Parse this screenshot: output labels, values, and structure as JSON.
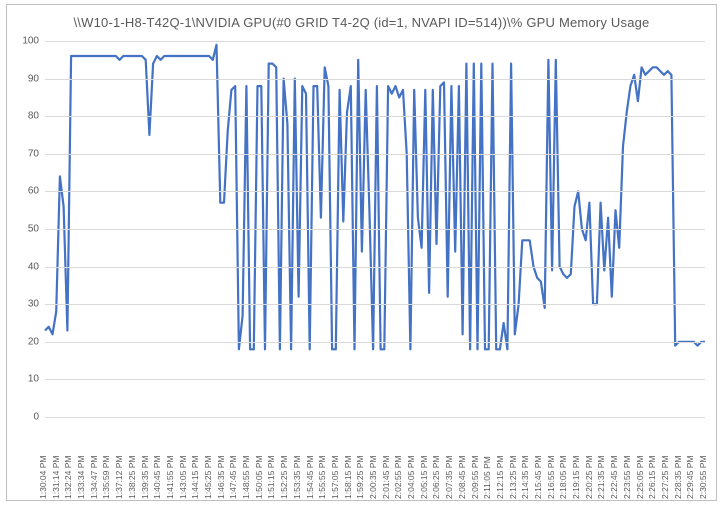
{
  "chart": {
    "type": "line",
    "title": "\\\\W10-1-H8-T42Q-1\\NVIDIA GPU(#0 GRID T4-2Q (id=1, NVAPI ID=514))\\% GPU Memory Usage",
    "title_fontsize": 13,
    "title_color": "#595959",
    "border_color": "#bfbfbf",
    "background_color": "#ffffff",
    "grid_color": "#d9d9d9",
    "line_color": "#4472c4",
    "line_width": 2.2,
    "y_axis": {
      "min": 0,
      "max": 100,
      "tick_step": 10,
      "ticks": [
        0,
        10,
        20,
        30,
        40,
        50,
        60,
        70,
        80,
        90,
        100
      ],
      "label_fontsize": 10,
      "label_color": "#595959"
    },
    "x_axis": {
      "label_fontsize": 8.5,
      "label_color": "#595959",
      "labels": [
        "1:30:04 PM",
        "1:31:14 PM",
        "1:32:24 PM",
        "1:33:34 PM",
        "1:34:47 PM",
        "1:35:59 PM",
        "1:37:12 PM",
        "1:38:25 PM",
        "1:39:35 PM",
        "1:40:45 PM",
        "1:41:55 PM",
        "1:43:05 PM",
        "1:44:15 PM",
        "1:45:25 PM",
        "1:46:35 PM",
        "1:47:45 PM",
        "1:48:55 PM",
        "1:50:05 PM",
        "1:51:15 PM",
        "1:52:25 PM",
        "1:53:35 PM",
        "1:54:45 PM",
        "1:55:55 PM",
        "1:57:05 PM",
        "1:58:15 PM",
        "1:59:25 PM",
        "2:00:35 PM",
        "2:01:45 PM",
        "2:02:55 PM",
        "2:04:05 PM",
        "2:05:15 PM",
        "2:06:25 PM",
        "2:07:35 PM",
        "2:08:45 PM",
        "2:09:55 PM",
        "2:11:05 PM",
        "2:12:15 PM",
        "2:13:25 PM",
        "2:14:35 PM",
        "2:15:45 PM",
        "2:16:55 PM",
        "2:18:05 PM",
        "2:19:15 PM",
        "2:20:25 PM",
        "2:21:35 PM",
        "2:22:45 PM",
        "2:23:55 PM",
        "2:25:05 PM",
        "2:26:15 PM",
        "2:27:25 PM",
        "2:28:35 PM",
        "2:29:45 PM",
        "2:30:55 PM"
      ]
    },
    "series": {
      "name": "% GPU Memory Usage",
      "values": [
        23,
        24,
        22,
        28,
        64,
        56,
        23,
        96,
        96,
        96,
        96,
        96,
        96,
        96,
        96,
        96,
        96,
        96,
        96,
        96,
        95,
        96,
        96,
        96,
        96,
        96,
        96,
        95,
        75,
        94,
        96,
        95,
        96,
        96,
        96,
        96,
        96,
        96,
        96,
        96,
        96,
        96,
        96,
        96,
        96,
        95,
        99,
        57,
        57,
        76,
        87,
        88,
        18,
        27,
        88,
        18,
        18,
        88,
        88,
        18,
        94,
        94,
        93,
        18,
        90,
        78,
        18,
        90,
        32,
        88,
        86,
        18,
        88,
        88,
        53,
        93,
        88,
        18,
        18,
        87,
        52,
        81,
        88,
        18,
        95,
        44,
        87,
        55,
        18,
        88,
        18,
        18,
        88,
        86,
        88,
        85,
        87,
        70,
        18,
        87,
        53,
        45,
        87,
        33,
        87,
        46,
        88,
        89,
        32,
        88,
        44,
        88,
        22,
        94,
        18,
        94,
        18,
        94,
        18,
        18,
        94,
        18,
        18,
        25,
        18,
        94,
        22,
        30,
        47,
        47,
        47,
        40,
        37,
        36,
        29,
        95,
        39,
        95,
        40,
        38,
        37,
        38,
        56,
        60,
        50,
        47,
        57,
        30,
        30,
        57,
        39,
        53,
        32,
        55,
        45,
        72,
        81,
        88,
        91,
        84,
        93,
        91,
        92,
        93,
        93,
        92,
        91,
        92,
        91,
        19,
        20,
        20,
        20,
        20,
        20,
        19,
        20,
        20
      ]
    }
  }
}
